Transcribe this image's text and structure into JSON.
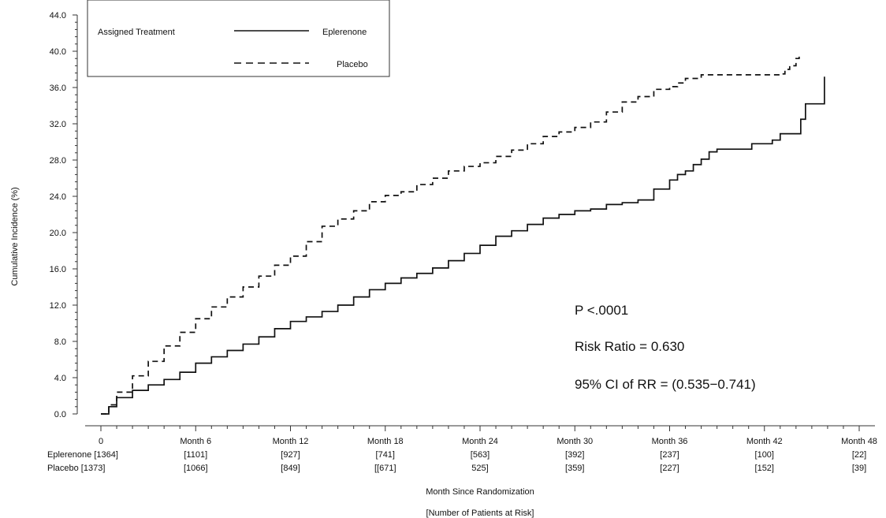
{
  "chart_data": {
    "type": "line",
    "title": "",
    "ylabel": "Cumulative Incidence (%)",
    "xlabel": "Month Since Randomization",
    "xlabel2": "[Number of Patients at Risk]",
    "ylim": [
      0,
      44
    ],
    "xlim": [
      0,
      48
    ],
    "y_ticks": [
      0,
      4,
      8,
      12,
      16,
      20,
      24,
      28,
      32,
      36,
      40,
      44
    ],
    "y_tick_labels": [
      "0.0",
      "4.0",
      "8.0",
      "12.0",
      "16.0",
      "20.0",
      "24.0",
      "28.0",
      "32.0",
      "36.0",
      "40.0",
      "44.0"
    ],
    "x_ticks": [
      0,
      6,
      12,
      18,
      24,
      30,
      36,
      42,
      48
    ],
    "x_tick_labels": [
      "0",
      "Month 6",
      "Month 12",
      "Month 18",
      "Month 24",
      "Month 30",
      "Month 36",
      "Month 42",
      "Month 48"
    ],
    "grid": false,
    "legend": {
      "title": "Assigned Treatment",
      "placement": "top-left",
      "entries": [
        {
          "name": "Eplerenone",
          "style": "solid"
        },
        {
          "name": "Placebo",
          "style": "dashed"
        }
      ]
    },
    "series": [
      {
        "name": "Eplerenone",
        "style": "solid",
        "x": [
          0,
          0.5,
          1,
          2,
          3,
          4,
          5,
          6,
          7,
          8,
          9,
          10,
          11,
          12,
          13,
          14,
          15,
          16,
          17,
          18,
          19,
          20,
          21,
          22,
          23,
          24,
          25,
          26,
          27,
          28,
          29,
          30,
          31,
          32,
          33,
          34,
          35,
          36,
          36.5,
          37,
          37.5,
          38,
          38.5,
          39,
          40,
          41,
          41.2,
          41.5,
          42,
          42.5,
          43,
          43.4,
          44,
          44.3,
          44.6,
          45,
          45.2,
          45.5,
          45.7,
          45.8
        ],
        "y": [
          0,
          0.8,
          1.8,
          2.6,
          3.2,
          3.8,
          4.6,
          5.6,
          6.3,
          7.0,
          7.7,
          8.5,
          9.4,
          10.2,
          10.7,
          11.3,
          12.0,
          12.9,
          13.7,
          14.4,
          15.0,
          15.5,
          16.1,
          16.9,
          17.7,
          18.6,
          19.6,
          20.2,
          20.9,
          21.6,
          22.0,
          22.4,
          22.6,
          23.1,
          23.3,
          23.6,
          24.8,
          25.8,
          26.4,
          26.8,
          27.5,
          28.1,
          28.9,
          29.2,
          29.2,
          29.2,
          29.8,
          29.8,
          29.8,
          30.2,
          30.9,
          30.9,
          30.9,
          32.5,
          34.2,
          34.2,
          34.2,
          34.2,
          34.2,
          37.2
        ]
      },
      {
        "name": "Placebo",
        "style": "dashed",
        "x": [
          0,
          0.5,
          1,
          2,
          3,
          4,
          5,
          6,
          7,
          8,
          9,
          10,
          11,
          12,
          13,
          14,
          15,
          16,
          17,
          18,
          19,
          20,
          21,
          22,
          23,
          24,
          25,
          26,
          27,
          28,
          29,
          30,
          31,
          32,
          33,
          34,
          35,
          36,
          36.5,
          37,
          38,
          39,
          40,
          41,
          42,
          43,
          43.3,
          43.6,
          44,
          44.2
        ],
        "y": [
          0,
          1.0,
          2.4,
          4.2,
          5.8,
          7.5,
          9.0,
          10.5,
          11.8,
          12.9,
          14.0,
          15.2,
          16.4,
          17.4,
          19.0,
          20.7,
          21.5,
          22.4,
          23.4,
          24.1,
          24.5,
          25.3,
          26.0,
          26.8,
          27.3,
          27.7,
          28.4,
          29.1,
          29.8,
          30.6,
          31.1,
          31.6,
          32.2,
          33.3,
          34.4,
          35.0,
          35.8,
          36.1,
          36.5,
          37.0,
          37.4,
          37.4,
          37.4,
          37.4,
          37.4,
          37.5,
          38.0,
          38.4,
          39.2,
          39.6
        ]
      }
    ],
    "annotations": [
      "P <.0001",
      "Risk Ratio = 0.630",
      "95% CI of RR = (0.535−0.741)"
    ],
    "at_risk": {
      "Eplerenone": [
        "Eplerenone [1364]",
        "[1101]",
        "[927]",
        "[741]",
        "[563]",
        "[392]",
        "[237]",
        "[100]",
        "[22]"
      ],
      "Placebo": [
        "Placebo [1373]",
        "[1066]",
        "[849]",
        "[[671]",
        "525]",
        "[359]",
        "[227]",
        "[152]",
        "[39]"
      ]
    }
  }
}
